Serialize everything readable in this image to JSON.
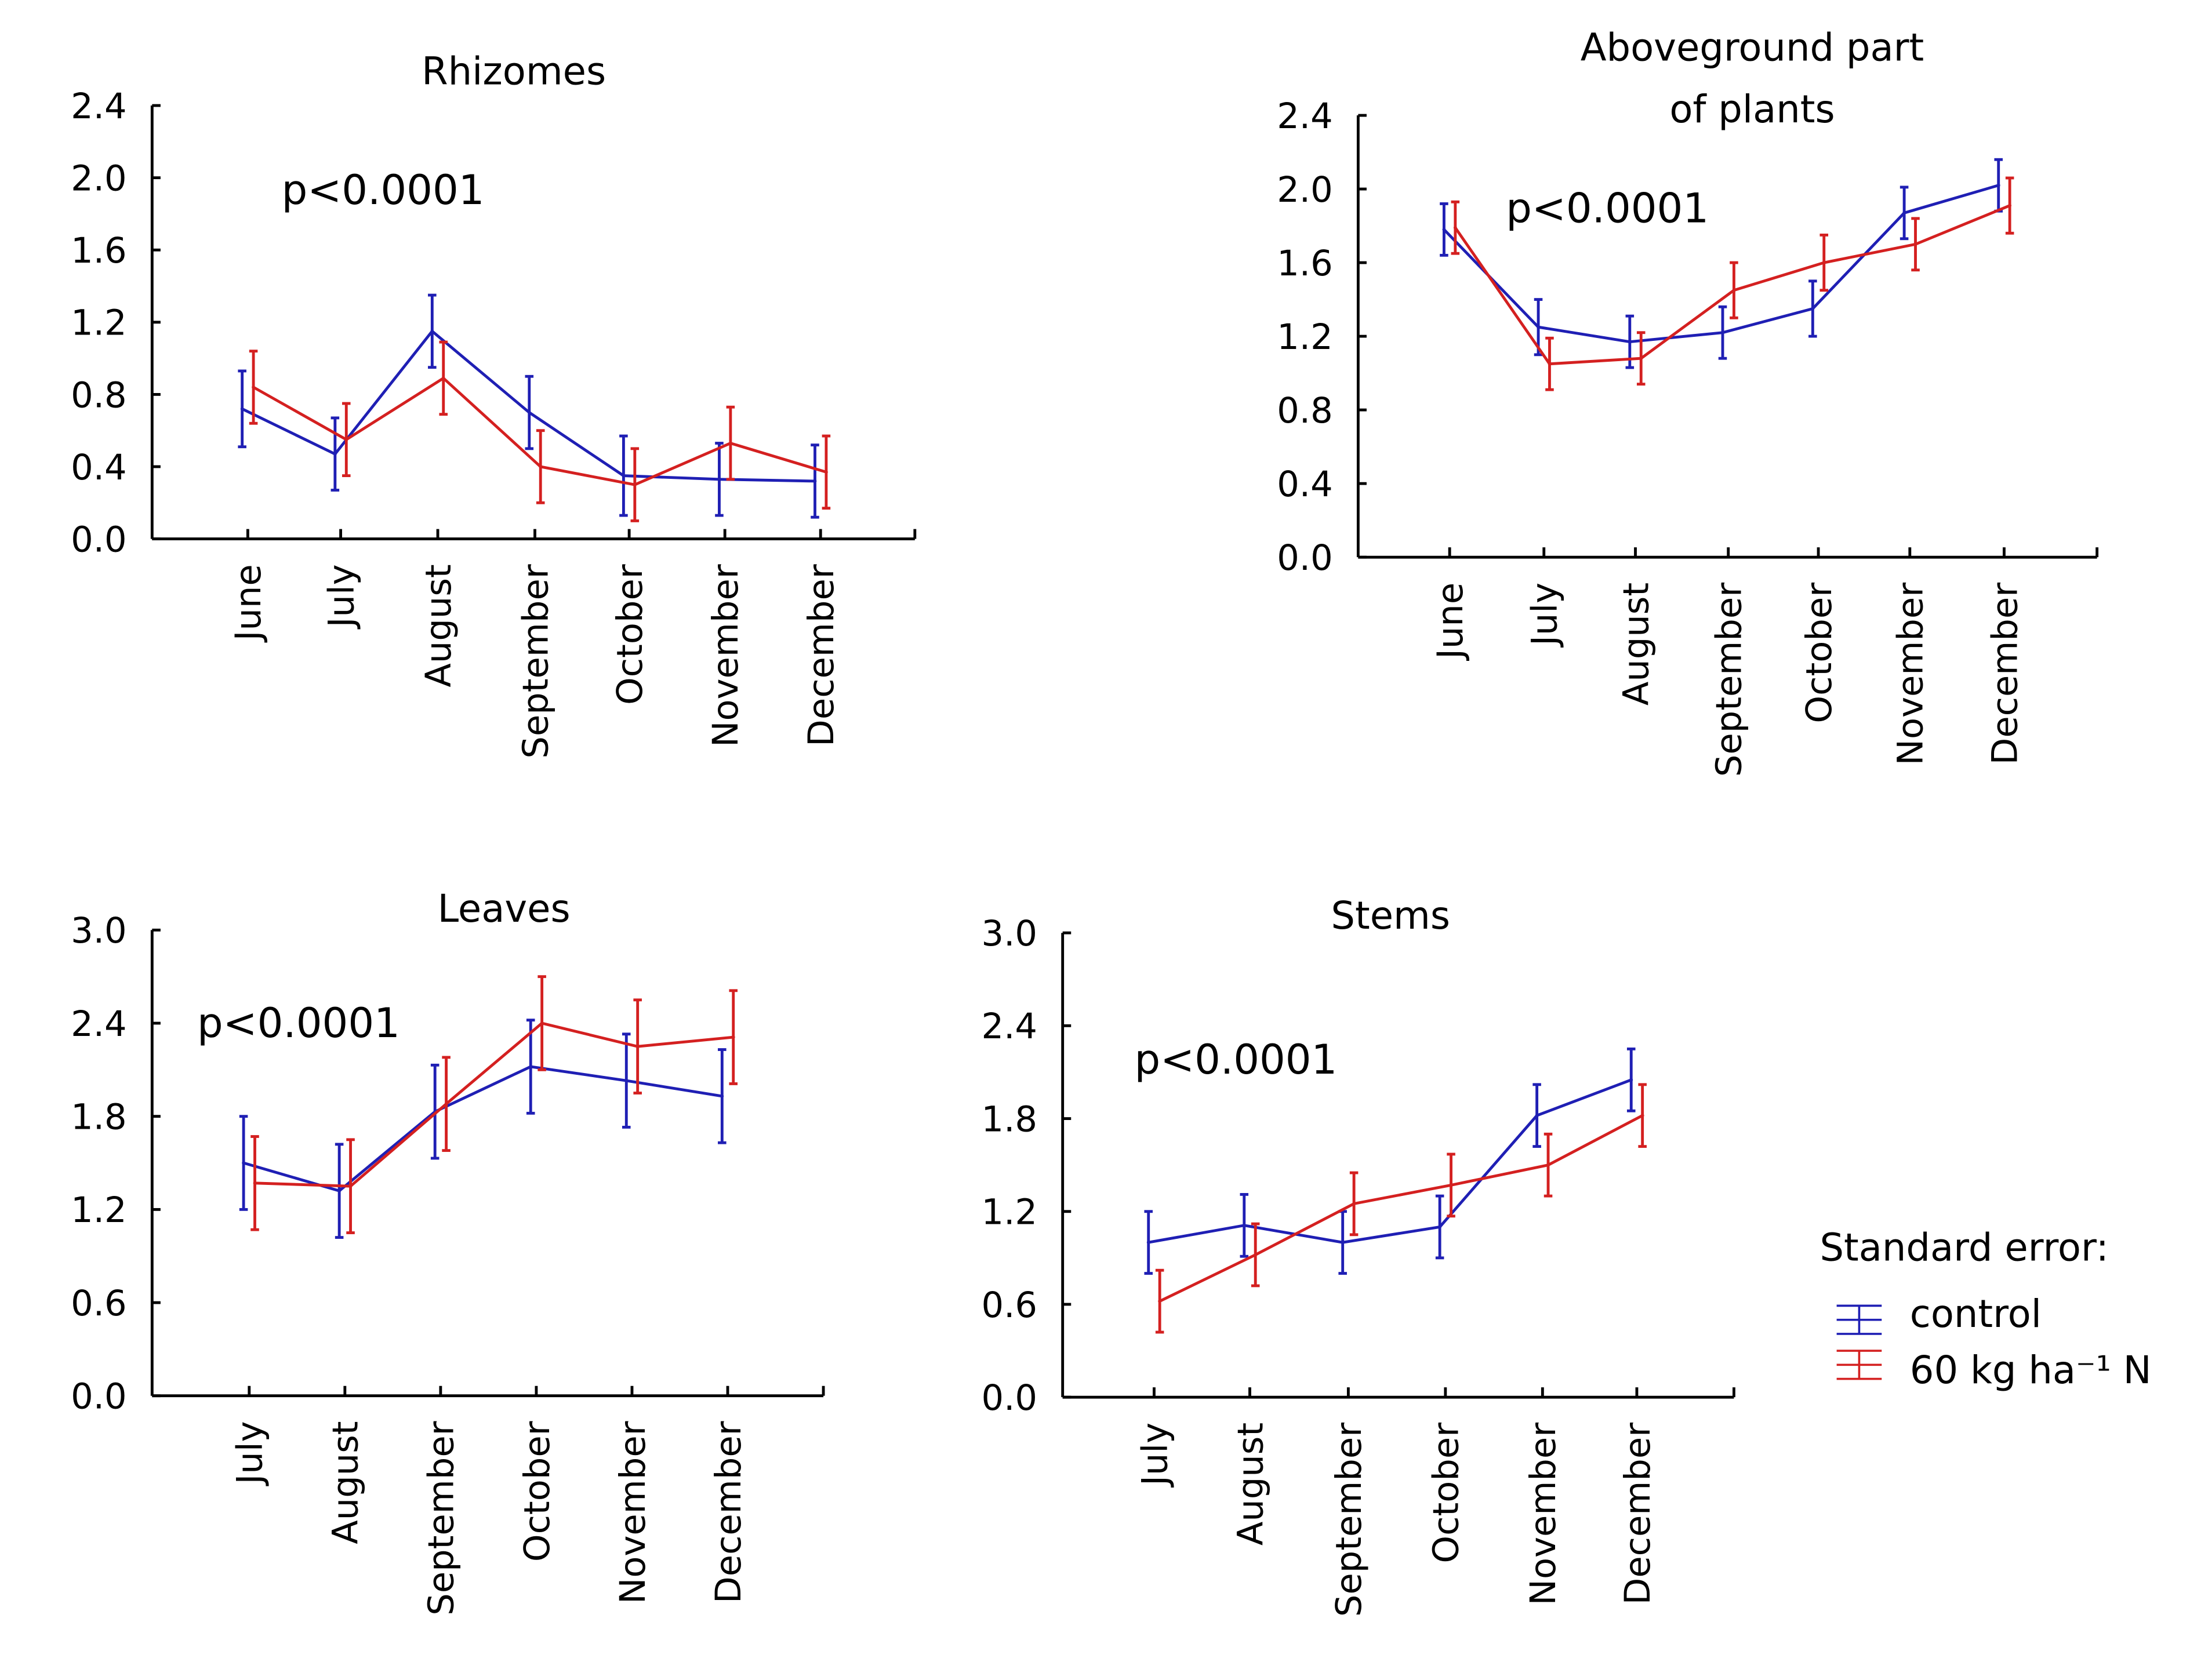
{
  "colors": {
    "control": "#1f1fb4",
    "treated": "#d42020",
    "axis": "#000000"
  },
  "legend": {
    "title": "Standard error:",
    "items": [
      "control",
      "60 kg ha⁻¹ N"
    ]
  },
  "chart_data": [
    {
      "type": "line",
      "title": "Rhizomes",
      "annotation": "p<0.0001",
      "categories": [
        "June",
        "July",
        "August",
        "September",
        "October",
        "November",
        "December"
      ],
      "ylim": [
        0,
        2.4
      ],
      "yticks": [
        "0.0",
        "0.4",
        "0.8",
        "1.2",
        "1.6",
        "2.0",
        "2.4"
      ],
      "series": [
        {
          "name": "control",
          "values": [
            0.72,
            0.47,
            1.15,
            0.7,
            0.35,
            0.33,
            0.32
          ],
          "errors": [
            0.21,
            0.2,
            0.2,
            0.2,
            0.22,
            0.2,
            0.2
          ]
        },
        {
          "name": "60 kg ha⁻¹ N",
          "values": [
            0.84,
            0.55,
            0.89,
            0.4,
            0.3,
            0.53,
            0.37
          ],
          "errors": [
            0.2,
            0.2,
            0.2,
            0.2,
            0.2,
            0.2,
            0.2
          ]
        }
      ]
    },
    {
      "type": "line",
      "title": "Aboveground part",
      "title_line2": "of plants",
      "annotation": "p<0.0001",
      "categories": [
        "June",
        "July",
        "August",
        "September",
        "October",
        "November",
        "December"
      ],
      "ylim": [
        0,
        2.4
      ],
      "yticks": [
        "0.0",
        "0.4",
        "0.8",
        "1.2",
        "1.6",
        "2.0",
        "2.4"
      ],
      "series": [
        {
          "name": "control",
          "values": [
            1.78,
            1.25,
            1.17,
            1.22,
            1.35,
            1.87,
            2.02
          ],
          "errors": [
            0.14,
            0.15,
            0.14,
            0.14,
            0.15,
            0.14,
            0.14
          ]
        },
        {
          "name": "60 kg ha⁻¹ N",
          "values": [
            1.79,
            1.05,
            1.08,
            1.45,
            1.6,
            1.7,
            1.91
          ],
          "errors": [
            0.14,
            0.14,
            0.14,
            0.15,
            0.15,
            0.14,
            0.15
          ]
        }
      ]
    },
    {
      "type": "line",
      "title": "Leaves",
      "annotation": "p<0.0001",
      "categories": [
        "July",
        "August",
        "September",
        "October",
        "November",
        "December"
      ],
      "ylim": [
        0,
        3.0
      ],
      "yticks": [
        "0.0",
        "0.6",
        "1.2",
        "1.8",
        "2.4",
        "3.0"
      ],
      "series": [
        {
          "name": "control",
          "values": [
            1.5,
            1.32,
            1.83,
            2.12,
            2.03,
            1.93
          ],
          "errors": [
            0.3,
            0.3,
            0.3,
            0.3,
            0.3,
            0.3
          ]
        },
        {
          "name": "60 kg ha⁻¹ N",
          "values": [
            1.37,
            1.35,
            1.88,
            2.4,
            2.25,
            2.31
          ],
          "errors": [
            0.3,
            0.3,
            0.3,
            0.3,
            0.3,
            0.3
          ]
        }
      ]
    },
    {
      "type": "line",
      "title": "Stems",
      "annotation": "p<0.0001",
      "categories": [
        "July",
        "August",
        "September",
        "October",
        "November",
        "December"
      ],
      "ylim": [
        0,
        3.0
      ],
      "yticks": [
        "0.0",
        "0.6",
        "1.2",
        "1.8",
        "2.4",
        "3.0"
      ],
      "series": [
        {
          "name": "control",
          "values": [
            1.0,
            1.11,
            1.0,
            1.1,
            1.82,
            2.05
          ],
          "errors": [
            0.2,
            0.2,
            0.2,
            0.2,
            0.2,
            0.2
          ]
        },
        {
          "name": "60 kg ha⁻¹ N",
          "values": [
            0.62,
            0.92,
            1.25,
            1.37,
            1.5,
            1.82
          ],
          "errors": [
            0.2,
            0.2,
            0.2,
            0.2,
            0.2,
            0.2
          ]
        }
      ]
    }
  ]
}
